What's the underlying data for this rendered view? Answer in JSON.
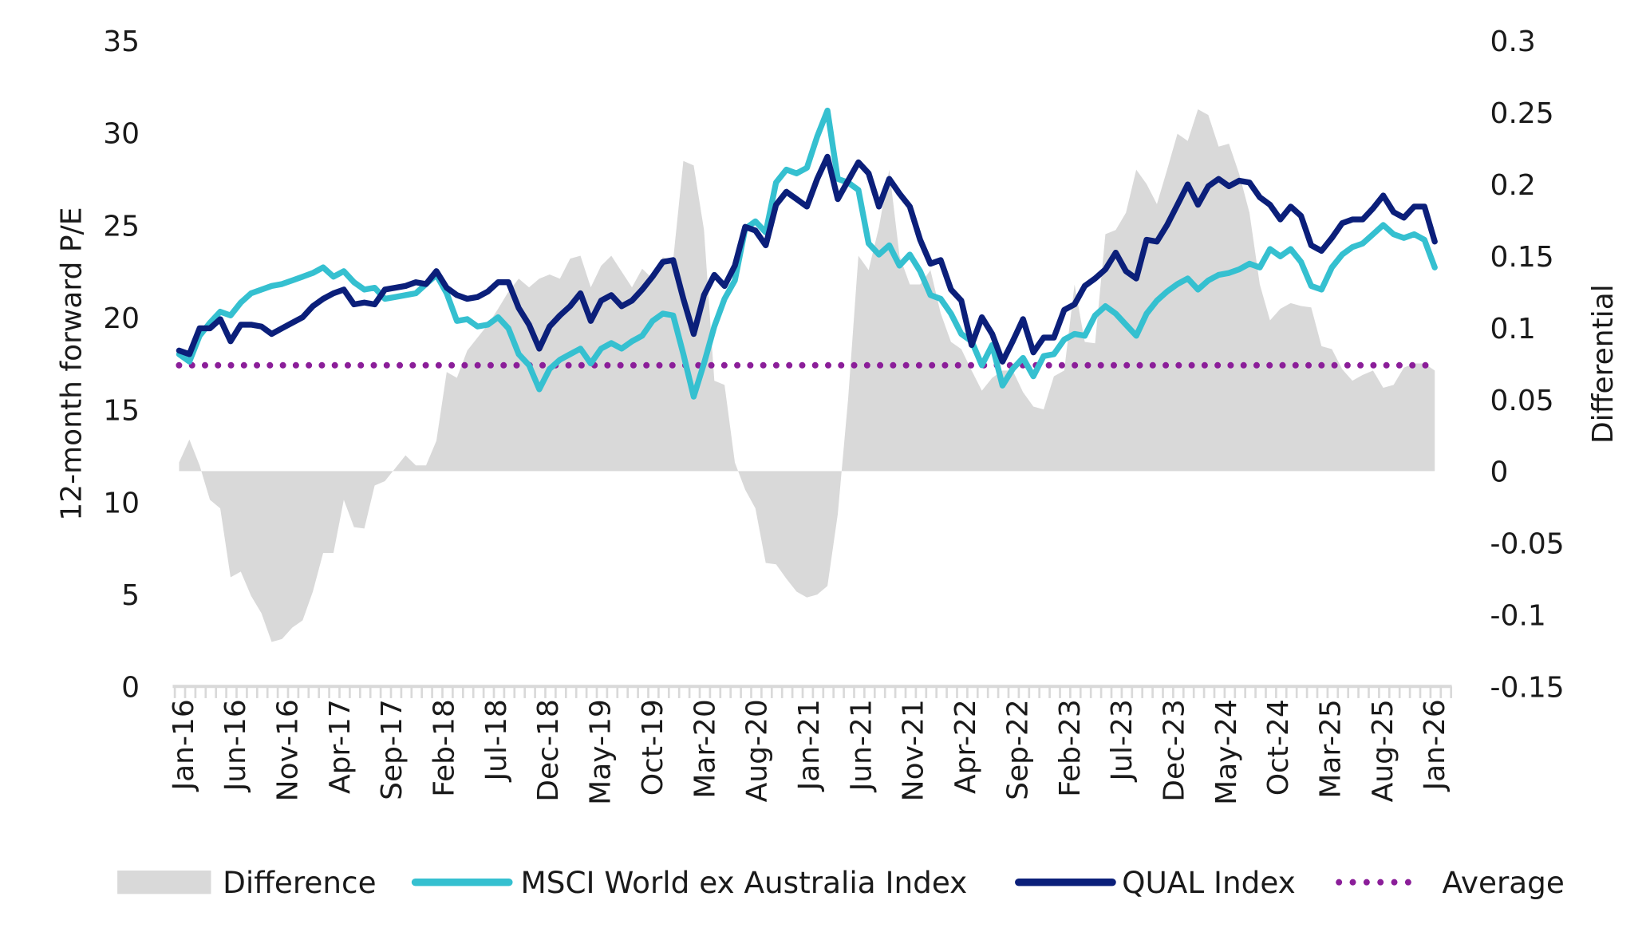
{
  "chart_data": {
    "type": "line",
    "title": "",
    "xlabel": "",
    "ylabel": "12-month forward P/E",
    "y2label": "Differential",
    "ylim": [
      0,
      35
    ],
    "y_ticks": [
      "0",
      "5",
      "10",
      "15",
      "20",
      "25",
      "30",
      "35"
    ],
    "y2lim": [
      -0.15,
      0.3
    ],
    "y2_ticks": [
      "-0.15",
      "-0.1",
      "-0.05",
      "0",
      "0.05",
      "0.1",
      "0.15",
      "0.2",
      "0.25",
      "0.3"
    ],
    "x_range": [
      "Jan-16",
      "Mar-26"
    ],
    "x_interval": "monthly",
    "x_tick_labels": [
      "Jan-16",
      "Jun-16",
      "Nov-16",
      "Apr-17",
      "Sep-17",
      "Feb-18",
      "Jul-18",
      "Dec-18",
      "May-19",
      "Oct-19",
      "Mar-20",
      "Aug-20",
      "Jan-21",
      "Jun-21",
      "Nov-21",
      "Apr-22",
      "Sep-22",
      "Feb-23",
      "Jul-23",
      "Dec-23",
      "May-24",
      "Oct-24",
      "Mar-25",
      "Aug-25",
      "Jan-26"
    ],
    "grid": false,
    "legend_position": "bottom",
    "colors": {
      "difference": "#d9d9d9",
      "msci": "#35c0d0",
      "qual": "#0b1f7a",
      "average": "#8b1e99",
      "axis": "#d9d9d9"
    },
    "series": [
      {
        "name": "Difference",
        "type": "area",
        "axis": "right",
        "values": [
          0.006,
          0.022,
          0.004,
          -0.02,
          -0.026,
          -0.074,
          -0.07,
          -0.087,
          -0.099,
          -0.119,
          -0.117,
          -0.109,
          -0.104,
          -0.084,
          -0.057,
          -0.057,
          -0.02,
          -0.039,
          -0.04,
          -0.01,
          -0.007,
          0.002,
          0.011,
          0.004,
          0.004,
          0.021,
          0.069,
          0.065,
          0.084,
          0.093,
          0.102,
          0.113,
          0.125,
          0.134,
          0.128,
          0.134,
          0.137,
          0.134,
          0.148,
          0.15,
          0.128,
          0.143,
          0.15,
          0.139,
          0.128,
          0.141,
          0.134,
          0.149,
          0.147,
          0.216,
          0.213,
          0.168,
          0.063,
          0.06,
          0.006,
          -0.013,
          -0.026,
          -0.064,
          -0.065,
          -0.075,
          -0.084,
          -0.088,
          -0.086,
          -0.08,
          -0.03,
          0.05,
          0.15,
          0.14,
          0.17,
          0.21,
          0.15,
          0.13,
          0.13,
          0.14,
          0.11,
          0.09,
          0.085,
          0.07,
          0.056,
          0.065,
          0.07,
          0.07,
          0.055,
          0.045,
          0.043,
          0.066,
          0.07,
          0.13,
          0.09,
          0.089,
          0.165,
          0.168,
          0.18,
          0.21,
          0.2,
          0.186,
          0.21,
          0.235,
          0.23,
          0.252,
          0.248,
          0.226,
          0.228,
          0.207,
          0.18,
          0.13,
          0.105,
          0.113,
          0.117,
          0.115,
          0.114,
          0.087,
          0.085,
          0.071,
          0.063,
          0.067,
          0.07,
          0.058,
          0.06,
          0.072,
          0.075,
          0.075,
          0.07
        ]
      },
      {
        "name": "MSCI World ex Australia Index",
        "type": "line",
        "axis": "left",
        "values": [
          18.0,
          17.6,
          19.0,
          19.7,
          20.3,
          20.1,
          20.8,
          21.3,
          21.5,
          21.7,
          21.8,
          22.0,
          22.2,
          22.4,
          22.7,
          22.2,
          22.5,
          21.9,
          21.5,
          21.6,
          21.0,
          21.1,
          21.2,
          21.3,
          21.8,
          22.3,
          21.3,
          19.8,
          19.9,
          19.5,
          19.6,
          20.0,
          19.4,
          18.0,
          17.4,
          16.1,
          17.2,
          17.7,
          18.0,
          18.3,
          17.5,
          18.3,
          18.6,
          18.3,
          18.7,
          19.0,
          19.8,
          20.2,
          20.1,
          18.0,
          15.7,
          17.5,
          19.5,
          21.0,
          22.0,
          24.8,
          25.2,
          24.6,
          27.3,
          28.0,
          27.8,
          28.1,
          29.8,
          31.2,
          27.5,
          27.3,
          26.9,
          24.0,
          23.4,
          23.9,
          22.8,
          23.4,
          22.5,
          21.2,
          21.0,
          20.2,
          19.1,
          18.7,
          17.4,
          18.5,
          16.3,
          17.2,
          17.8,
          16.8,
          17.9,
          18.0,
          18.8,
          19.1,
          19.0,
          20.1,
          20.6,
          20.2,
          19.6,
          19.0,
          20.2,
          20.9,
          21.4,
          21.8,
          22.1,
          21.5,
          22.0,
          22.3,
          22.4,
          22.6,
          22.9,
          22.7,
          23.7,
          23.3,
          23.7,
          23.0,
          21.7,
          21.5,
          22.7,
          23.4,
          23.8,
          24.0,
          24.5,
          25.0,
          24.5,
          24.3,
          24.5,
          24.2,
          22.7
        ]
      },
      {
        "name": "QUAL Index",
        "type": "line",
        "axis": "left",
        "values": [
          18.2,
          18.0,
          19.4,
          19.4,
          19.9,
          18.7,
          19.6,
          19.6,
          19.5,
          19.1,
          19.4,
          19.7,
          20.0,
          20.6,
          21.0,
          21.3,
          21.5,
          20.7,
          20.8,
          20.7,
          21.5,
          21.6,
          21.7,
          21.9,
          21.8,
          22.5,
          21.6,
          21.2,
          21.0,
          21.1,
          21.4,
          21.9,
          21.9,
          20.5,
          19.6,
          18.3,
          19.5,
          20.1,
          20.6,
          21.3,
          19.8,
          20.9,
          21.2,
          20.6,
          20.9,
          21.5,
          22.2,
          23.0,
          23.1,
          21.0,
          19.1,
          21.2,
          22.3,
          21.7,
          22.8,
          24.9,
          24.7,
          23.9,
          26.1,
          26.8,
          26.4,
          26.0,
          27.5,
          28.7,
          26.4,
          27.4,
          28.4,
          27.8,
          26.0,
          27.5,
          26.7,
          26.0,
          24.2,
          22.9,
          23.1,
          21.5,
          20.9,
          18.5,
          20.0,
          19.1,
          17.6,
          18.7,
          19.9,
          18.1,
          18.9,
          18.9,
          20.4,
          20.7,
          21.7,
          22.1,
          22.6,
          23.5,
          22.5,
          22.1,
          24.2,
          24.1,
          25.0,
          26.1,
          27.2,
          26.1,
          27.1,
          27.5,
          27.1,
          27.4,
          27.3,
          26.5,
          26.1,
          25.3,
          26.0,
          25.5,
          23.9,
          23.6,
          24.3,
          25.1,
          25.3,
          25.3,
          25.9,
          26.6,
          25.7,
          25.4,
          26.0,
          26.0,
          24.1
        ]
      },
      {
        "name": "Average",
        "type": "line",
        "style": "dotted",
        "axis": "left",
        "value": 17.4
      }
    ]
  },
  "legend": {
    "difference": "Difference",
    "msci": "MSCI World ex Australia Index",
    "qual": "QUAL Index",
    "average": "Average"
  }
}
